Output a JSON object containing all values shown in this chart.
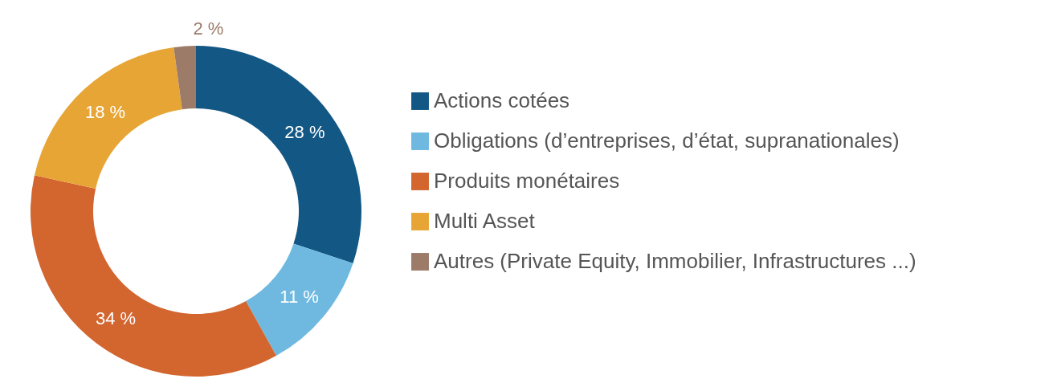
{
  "chart_data": {
    "type": "donut",
    "categories": [
      "Actions cotées",
      "Obligations (d’entreprises, d’état, supranationales)",
      "Produits monétaires",
      "Multi Asset",
      "Autres (Private Equity, Immobilier, Infrastructures ...)"
    ],
    "values": [
      28,
      11,
      34,
      18,
      2
    ],
    "value_labels": [
      "28 %",
      "11 %",
      "34 %",
      "18 %",
      "2 %"
    ],
    "colors": [
      "#135885",
      "#6fb9e1",
      "#d3652f",
      "#e7a535",
      "#9c7b68"
    ],
    "legend": "right"
  }
}
